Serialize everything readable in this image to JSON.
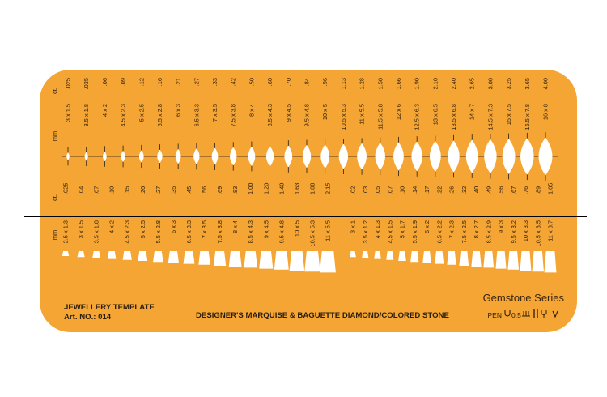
{
  "colors": {
    "plate": "#f5a534",
    "ink": "#2b1d0e",
    "cutout": "#ffffff",
    "line": "#000000"
  },
  "labels": {
    "ct": "ct.",
    "mm": "mm",
    "brand": "Gemstone Series",
    "product": "JEWELLERY TEMPLATE",
    "art": "Art. NO.: 014",
    "description": "DESIGNER'S MARQUISE & BAGUETTE DIAMOND/COLORED STONE",
    "pen": "PEN",
    "pen_size": "0.5"
  },
  "marquise": [
    {
      "ct": ".025",
      "mm": "3 x 1.5",
      "w": 3.0,
      "h": 1.5
    },
    {
      "ct": ".035",
      "mm": "3.5 x 1.8",
      "w": 3.5,
      "h": 1.8
    },
    {
      "ct": ".06",
      "mm": "4 x 2",
      "w": 4.0,
      "h": 2.0
    },
    {
      "ct": ".09",
      "mm": "4.5 x 2.3",
      "w": 4.5,
      "h": 2.3
    },
    {
      "ct": ".12",
      "mm": "5 x 2.5",
      "w": 5.0,
      "h": 2.5
    },
    {
      "ct": ".16",
      "mm": "5.5 x 2.8",
      "w": 5.5,
      "h": 2.8
    },
    {
      "ct": ".21",
      "mm": "6 x 3",
      "w": 6.0,
      "h": 3.0
    },
    {
      "ct": ".27",
      "mm": "6.5 x 3.3",
      "w": 6.5,
      "h": 3.3
    },
    {
      "ct": ".33",
      "mm": "7 x 3.5",
      "w": 7.0,
      "h": 3.5
    },
    {
      "ct": ".42",
      "mm": "7.5 x 3.8",
      "w": 7.5,
      "h": 3.8
    },
    {
      "ct": ".50",
      "mm": "8 x 4",
      "w": 8.0,
      "h": 4.0
    },
    {
      "ct": ".60",
      "mm": "8.5 x 4.3",
      "w": 8.5,
      "h": 4.3
    },
    {
      "ct": ".70",
      "mm": "9 x 4.5",
      "w": 9.0,
      "h": 4.5
    },
    {
      "ct": ".84",
      "mm": "9.5 x 4.8",
      "w": 9.5,
      "h": 4.8
    },
    {
      "ct": ".96",
      "mm": "10 x 5",
      "w": 10.0,
      "h": 5.0
    },
    {
      "ct": "1.13",
      "mm": "10.5 x 5.3",
      "w": 10.5,
      "h": 5.3
    },
    {
      "ct": "1.28",
      "mm": "11 x 5.5",
      "w": 11.0,
      "h": 5.5
    },
    {
      "ct": "1.50",
      "mm": "11.5 x 5.8",
      "w": 11.5,
      "h": 5.8
    },
    {
      "ct": "1.66",
      "mm": "12 x 6",
      "w": 12.0,
      "h": 6.0
    },
    {
      "ct": "1.90",
      "mm": "12.5 x 6.3",
      "w": 12.5,
      "h": 6.3
    },
    {
      "ct": "2.10",
      "mm": "13 x 6.5",
      "w": 13.0,
      "h": 6.5
    },
    {
      "ct": "2.40",
      "mm": "13.5 x 6.8",
      "w": 13.5,
      "h": 6.8
    },
    {
      "ct": "2.65",
      "mm": "14 x 7",
      "w": 14.0,
      "h": 7.0
    },
    {
      "ct": "3.00",
      "mm": "14.5 x 7.3",
      "w": 14.5,
      "h": 7.3
    },
    {
      "ct": "3.25",
      "mm": "15 x 7.5",
      "w": 15.0,
      "h": 7.5
    },
    {
      "ct": "3.65",
      "mm": "15.5 x 7.8",
      "w": 15.5,
      "h": 7.8
    },
    {
      "ct": "4.00",
      "mm": "16 x 8",
      "w": 16.0,
      "h": 8.0
    }
  ],
  "baguette_large": [
    {
      "ct": ".025",
      "mm": "2.5 x 1.3",
      "w": 2.5,
      "h": 1.3
    },
    {
      "ct": ".04",
      "mm": "3 x 1.5",
      "w": 3.0,
      "h": 1.5
    },
    {
      "ct": ".07",
      "mm": "3.5 x 1.8",
      "w": 3.5,
      "h": 1.8
    },
    {
      "ct": ".10",
      "mm": "4 x 2",
      "w": 4.0,
      "h": 2.0
    },
    {
      "ct": ".15",
      "mm": "4.5 x 2.3",
      "w": 4.5,
      "h": 2.3
    },
    {
      "ct": ".20",
      "mm": "5 x 2.5",
      "w": 5.0,
      "h": 2.5
    },
    {
      "ct": ".27",
      "mm": "5.5 x 2.8",
      "w": 5.5,
      "h": 2.8
    },
    {
      "ct": ".35",
      "mm": "6 x 3",
      "w": 6.0,
      "h": 3.0
    },
    {
      "ct": ".45",
      "mm": "6.5 x 3.3",
      "w": 6.5,
      "h": 3.3
    },
    {
      "ct": ".56",
      "mm": "7 x 3.5",
      "w": 7.0,
      "h": 3.5
    },
    {
      "ct": ".69",
      "mm": "7.5 x 3.8",
      "w": 7.5,
      "h": 3.8
    },
    {
      "ct": ".83",
      "mm": "8 x 4",
      "w": 8.0,
      "h": 4.0
    },
    {
      "ct": "1.00",
      "mm": "8.5 x 4.3",
      "w": 8.5,
      "h": 4.3
    },
    {
      "ct": "1.20",
      "mm": "9 x 4.5",
      "w": 9.0,
      "h": 4.5
    },
    {
      "ct": "1.40",
      "mm": "9.5 x 4.8",
      "w": 9.5,
      "h": 4.8
    },
    {
      "ct": "1.63",
      "mm": "10 x 5",
      "w": 10.0,
      "h": 5.0
    },
    {
      "ct": "1.88",
      "mm": "10.5 x 5.3",
      "w": 10.5,
      "h": 5.3
    },
    {
      "ct": "2.15",
      "mm": "11 x 5.5",
      "w": 11.0,
      "h": 5.5
    }
  ],
  "baguette_small": [
    {
      "ct": ".02",
      "mm": "3 x 1",
      "w": 3.0,
      "h": 1.0
    },
    {
      "ct": ".03",
      "mm": "3.5 x 1.2",
      "w": 3.5,
      "h": 1.2
    },
    {
      "ct": ".05",
      "mm": "4 x 1.3",
      "w": 4.0,
      "h": 1.3
    },
    {
      "ct": ".07",
      "mm": "4.5 x 1.5",
      "w": 4.5,
      "h": 1.5
    },
    {
      "ct": ".10",
      "mm": "5 x 1.7",
      "w": 5.0,
      "h": 1.7
    },
    {
      "ct": ".14",
      "mm": "5.5 x 1.9",
      "w": 5.5,
      "h": 1.9
    },
    {
      "ct": ".17",
      "mm": "6 x 2",
      "w": 6.0,
      "h": 2.0
    },
    {
      "ct": ".22",
      "mm": "6.5 x 2.2",
      "w": 6.5,
      "h": 2.2
    },
    {
      "ct": ".26",
      "mm": "7 x 2.3",
      "w": 7.0,
      "h": 2.3
    },
    {
      "ct": ".32",
      "mm": "7.5 x 2.5",
      "w": 7.5,
      "h": 2.5
    },
    {
      "ct": ".40",
      "mm": "8 x 2.7",
      "w": 8.0,
      "h": 2.7
    },
    {
      "ct": ".49",
      "mm": "8.5 x 2.9",
      "w": 8.5,
      "h": 2.9
    },
    {
      "ct": ".56",
      "mm": "9 x 3",
      "w": 9.0,
      "h": 3.0
    },
    {
      "ct": ".67",
      "mm": "9.5 x 3.2",
      "w": 9.5,
      "h": 3.2
    },
    {
      "ct": ".76",
      "mm": "10 x 3.3",
      "w": 10.0,
      "h": 3.3
    },
    {
      "ct": ".89",
      "mm": "10.5 x 3.5",
      "w": 10.5,
      "h": 3.5
    },
    {
      "ct": "1.05",
      "mm": "11 x 3.7",
      "w": 11.0,
      "h": 3.7
    }
  ],
  "pen_icons": [
    "pen-nib-icon",
    "pen-tube-icon",
    "pen-bar-icon",
    "pen-fork-icon",
    "pen-v-icon"
  ]
}
